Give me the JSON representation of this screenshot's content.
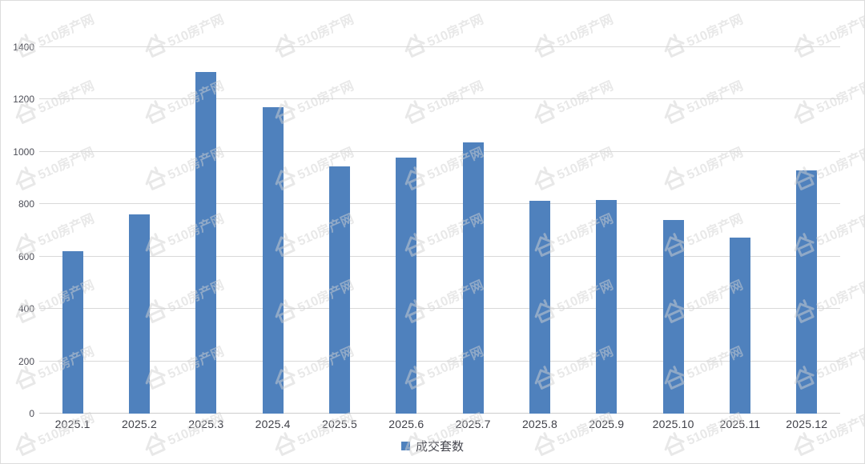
{
  "chart_data": {
    "type": "bar",
    "title": "",
    "xlabel": "",
    "ylabel": "",
    "categories": [
      "2025.1",
      "2025.2",
      "2025.3",
      "2025.4",
      "2025.5",
      "2025.6",
      "2025.7",
      "2025.8",
      "2025.9",
      "2025.10",
      "2025.11",
      "2025.12"
    ],
    "series": [
      {
        "name": "成交套数",
        "values": [
          620,
          760,
          1305,
          1170,
          945,
          978,
          1037,
          812,
          815,
          740,
          672,
          930
        ]
      }
    ],
    "legend": [
      "成交套数"
    ],
    "legend_position": "bottom",
    "ylim": [
      0,
      1400
    ],
    "ytick_step": 200,
    "yticks": [
      0,
      200,
      400,
      600,
      800,
      1000,
      1200,
      1400
    ],
    "grid": true,
    "bar_color": "#4F81BD"
  },
  "watermark": {
    "text": "510房产网",
    "icon": "house-icon",
    "color": "#d2d2d2"
  }
}
